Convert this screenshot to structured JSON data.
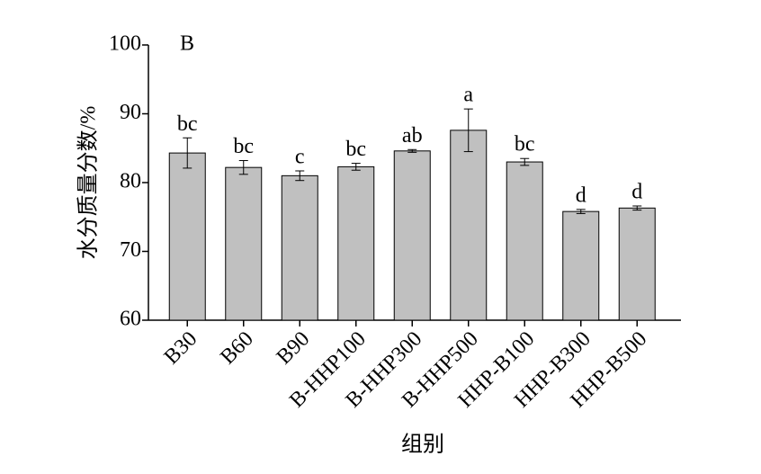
{
  "chart_data": {
    "type": "bar",
    "panel_label": "B",
    "y_label": "水分质量分数/%",
    "x_label": "组别",
    "categories": [
      "B30",
      "B60",
      "B90",
      "B-HHP100",
      "B-HHP300",
      "B-HHP500",
      "HHP-B100",
      "HHP-B300",
      "HHP-B500"
    ],
    "values": [
      84.3,
      82.2,
      81.0,
      82.3,
      84.6,
      87.6,
      83.0,
      75.8,
      76.3
    ],
    "errors": [
      2.2,
      1.0,
      0.7,
      0.5,
      0.2,
      3.1,
      0.5,
      0.3,
      0.3
    ],
    "letters": [
      "bc",
      "bc",
      "c",
      "bc",
      "ab",
      "a",
      "bc",
      "d",
      "d"
    ],
    "color": "#c0c0c0",
    "ylim": [
      60,
      100
    ],
    "yticks": [
      60,
      70,
      80,
      90,
      100
    ]
  }
}
